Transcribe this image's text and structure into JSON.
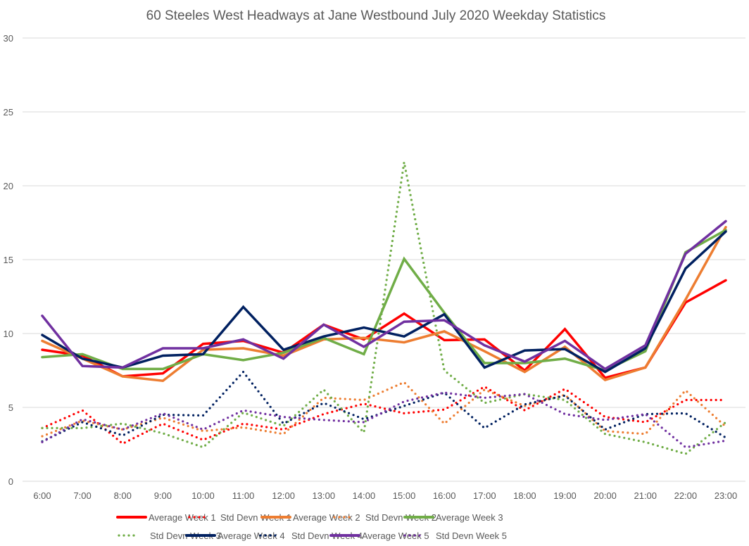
{
  "chart_data": {
    "type": "line",
    "title": "60 Steeles West Headways at Jane Westbound July 2020 Weekday Statistics",
    "xlabel": "",
    "ylabel": "",
    "ylim": [
      0,
      30
    ],
    "yticks": [
      "0",
      "5",
      "10",
      "15",
      "20",
      "25",
      "30"
    ],
    "grid": true,
    "legend_position": "bottom",
    "categories": [
      "6:00",
      "7:00",
      "8:00",
      "9:00",
      "10:00",
      "11:00",
      "12:00",
      "13:00",
      "14:00",
      "15:00",
      "16:00",
      "17:00",
      "18:00",
      "19:00",
      "20:00",
      "21:00",
      "22:00",
      "23:00"
    ],
    "series": [
      {
        "name": "Average Week 1",
        "color": "#ff0000",
        "style": "solid",
        "values": [
          8.9,
          8.5,
          7.1,
          7.3,
          9.3,
          9.5,
          8.7,
          10.6,
          9.6,
          11.35,
          9.55,
          9.6,
          7.5,
          10.3,
          7.0,
          7.7,
          12.1,
          13.6
        ]
      },
      {
        "name": "Std Devn Week 1",
        "color": "#ff0000",
        "style": "dotted",
        "values": [
          3.6,
          4.8,
          2.55,
          3.9,
          2.8,
          3.9,
          3.5,
          4.55,
          5.25,
          4.6,
          4.85,
          6.4,
          4.8,
          6.25,
          4.35,
          4.0,
          5.5,
          5.5
        ]
      },
      {
        "name": "Average Week 2",
        "color": "#ed7d31",
        "style": "solid",
        "values": [
          9.5,
          8.3,
          7.1,
          6.8,
          8.9,
          9.0,
          8.5,
          9.6,
          9.7,
          9.4,
          10.15,
          8.8,
          7.4,
          9.1,
          6.85,
          7.7,
          12.3,
          17.2
        ]
      },
      {
        "name": "Std Devn Week 2",
        "color": "#ed7d31",
        "style": "dotted",
        "values": [
          3.05,
          4.1,
          3.5,
          4.3,
          3.4,
          3.65,
          3.2,
          5.65,
          5.5,
          6.7,
          3.9,
          6.2,
          5.1,
          5.85,
          3.4,
          3.2,
          6.15,
          3.7
        ]
      },
      {
        "name": "Average Week 3",
        "color": "#70ad47",
        "style": "solid",
        "values": [
          8.4,
          8.6,
          7.6,
          7.6,
          8.6,
          8.2,
          8.7,
          9.7,
          8.6,
          15.05,
          11.4,
          8.0,
          8.0,
          8.3,
          7.5,
          8.8,
          15.5,
          17.0
        ]
      },
      {
        "name": "Std Devn Week 3",
        "color": "#70ad47",
        "style": "dotted",
        "values": [
          3.6,
          3.6,
          3.9,
          3.25,
          2.3,
          4.65,
          3.75,
          6.2,
          3.3,
          21.6,
          7.5,
          5.3,
          5.9,
          5.5,
          3.2,
          2.65,
          1.85,
          4.0
        ]
      },
      {
        "name": "Average Week 4",
        "color": "#002060",
        "style": "solid",
        "values": [
          9.9,
          8.3,
          7.7,
          8.5,
          8.6,
          11.8,
          8.9,
          9.8,
          10.4,
          9.8,
          11.3,
          7.7,
          8.85,
          8.95,
          7.4,
          9.0,
          14.4,
          16.9
        ]
      },
      {
        "name": "Std Devn Week 4",
        "color": "#002060",
        "style": "dotted",
        "values": [
          2.7,
          4.0,
          3.1,
          4.5,
          4.45,
          7.4,
          3.9,
          5.3,
          4.2,
          5.1,
          6.0,
          3.6,
          5.2,
          5.8,
          3.5,
          4.55,
          4.6,
          2.95
        ]
      },
      {
        "name": "Average Week 5",
        "color": "#7030a0",
        "style": "solid",
        "values": [
          11.2,
          7.8,
          7.7,
          9.0,
          9.0,
          9.6,
          8.3,
          10.6,
          9.1,
          10.8,
          10.9,
          9.2,
          8.1,
          9.5,
          7.6,
          9.2,
          15.4,
          17.6
        ]
      },
      {
        "name": "Std Devn Week 5",
        "color": "#7030a0",
        "style": "dotted",
        "values": [
          2.65,
          4.2,
          3.5,
          4.6,
          3.5,
          4.8,
          4.35,
          4.15,
          4.0,
          5.4,
          6.0,
          5.65,
          5.9,
          4.55,
          4.15,
          4.55,
          2.3,
          2.75
        ]
      }
    ]
  }
}
